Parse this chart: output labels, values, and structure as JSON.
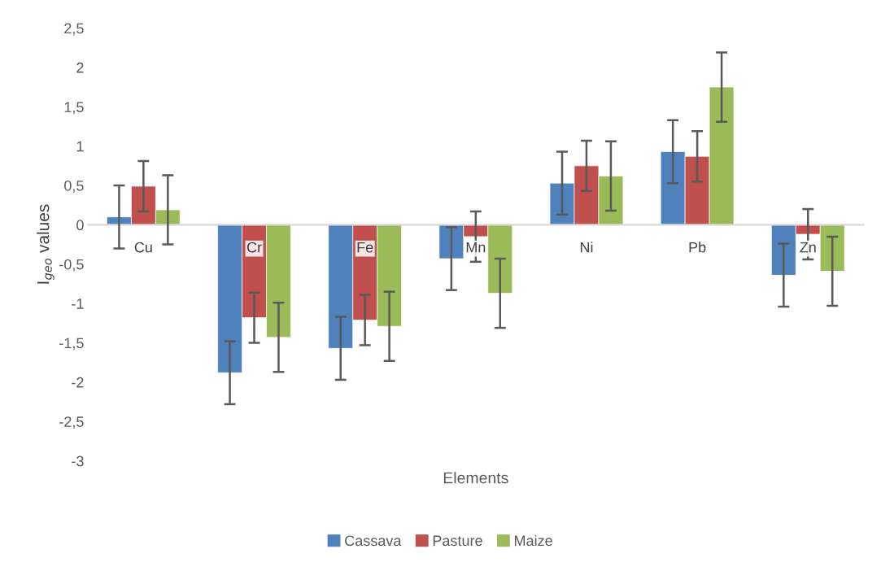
{
  "chart_data": {
    "type": "bar",
    "xlabel": "Elements",
    "ylabel": "I$_{geo}$ values",
    "categories": [
      "Cu",
      "Cr",
      "Fe",
      "Mn",
      "Ni",
      "Pb",
      "Zn"
    ],
    "series": [
      {
        "name": "Cassava",
        "color": "#4f81bd",
        "values": [
          0.1,
          -1.88,
          -1.57,
          -0.43,
          0.53,
          0.93,
          -0.64
        ],
        "errors": [
          0.4,
          0.4,
          0.4,
          0.4,
          0.4,
          0.4,
          0.4
        ]
      },
      {
        "name": "Pasture",
        "color": "#c0504d",
        "values": [
          0.49,
          -1.18,
          -1.21,
          -0.15,
          0.75,
          0.87,
          -0.12
        ],
        "errors": [
          0.32,
          0.32,
          0.32,
          0.32,
          0.32,
          0.32,
          0.32
        ]
      },
      {
        "name": "Maize",
        "color": "#9bbb59",
        "values": [
          0.19,
          -1.43,
          -1.29,
          -0.87,
          0.62,
          1.75,
          -0.59
        ],
        "errors": [
          0.44,
          0.44,
          0.44,
          0.44,
          0.44,
          0.44,
          0.44
        ]
      }
    ],
    "ylim": [
      -3,
      2.5
    ],
    "yticks": [
      {
        "value": -3,
        "label": "-3"
      },
      {
        "value": -2.5,
        "label": "-2,5"
      },
      {
        "value": -2,
        "label": "-2"
      },
      {
        "value": -1.5,
        "label": "-1,5"
      },
      {
        "value": -1,
        "label": "-1"
      },
      {
        "value": -0.5,
        "label": "-0,5"
      },
      {
        "value": 0,
        "label": "0"
      },
      {
        "value": 0.5,
        "label": "0,5"
      },
      {
        "value": 1,
        "label": "1"
      },
      {
        "value": 1.5,
        "label": "1,5"
      },
      {
        "value": 2,
        "label": "2"
      },
      {
        "value": 2.5,
        "label": "2,5"
      }
    ],
    "grid": false,
    "legend": "bottom"
  }
}
